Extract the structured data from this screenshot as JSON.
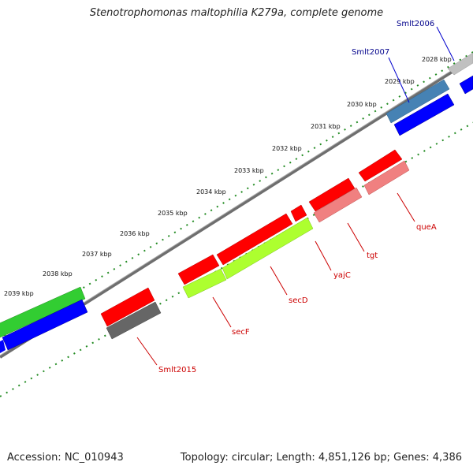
{
  "title": "Stenotrophomonas maltophilia K279a, complete genome",
  "footer": {
    "accession": "Accession: NC_010943",
    "topology": "Topology: circular; Length: 4,851,126 bp; Genes: 4,386"
  },
  "kbp_ticks": [
    "2028 kbp",
    "2029 kbp",
    "2030 kbp",
    "2031 kbp",
    "2032 kbp",
    "2033 kbp",
    "2034 kbp",
    "2035 kbp",
    "2036 kbp",
    "2037 kbp",
    "2038 kbp",
    "2039 kbp"
  ],
  "gene_labels": [
    {
      "text": "Smlt2006",
      "color": "#00008b"
    },
    {
      "text": "Smlt2007",
      "color": "#00008b"
    },
    {
      "text": "queA",
      "color": "#cc0000"
    },
    {
      "text": "tgt",
      "color": "#cc0000"
    },
    {
      "text": "yajC",
      "color": "#cc0000"
    },
    {
      "text": "secD",
      "color": "#cc0000"
    },
    {
      "text": "secF",
      "color": "#cc0000"
    },
    {
      "text": "Smlt2015",
      "color": "#cc0000"
    }
  ],
  "colors": {
    "backbone": "#808080",
    "cds": "#ff0000",
    "trna_like": "#f08080",
    "gene_green": "#adff2f",
    "gene_blue": "#0000ff",
    "gene_steel": "#4682b4",
    "gene_gray": "#666666",
    "gene_light_gray": "#c0c0c0",
    "gene_dark_green": "#32cd32",
    "tick_green": "#228b22"
  }
}
